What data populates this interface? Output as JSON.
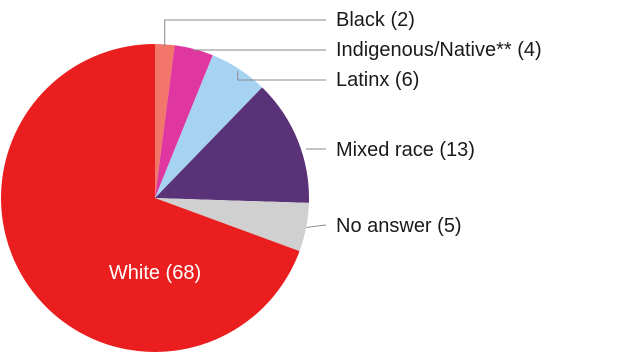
{
  "chart_data": {
    "type": "pie",
    "slices": [
      {
        "label": "Black (2)",
        "value": 2,
        "color": "#f2776a"
      },
      {
        "label": "Indigenous/Native** (4)",
        "value": 4,
        "color": "#e0369f"
      },
      {
        "label": "Latinx (6)",
        "value": 6,
        "color": "#a7d3f3"
      },
      {
        "label": "Mixed race (13)",
        "value": 13,
        "color": "#5a3278"
      },
      {
        "label": "No answer (5)",
        "value": 5,
        "color": "#d0d0d0"
      },
      {
        "label": "White (68)",
        "value": 68,
        "color": "#ea1e1e"
      }
    ],
    "start_angle": "12 o'clock",
    "direction": "clockwise",
    "label_placement": "right with leader lines; largest slice labeled inside"
  }
}
